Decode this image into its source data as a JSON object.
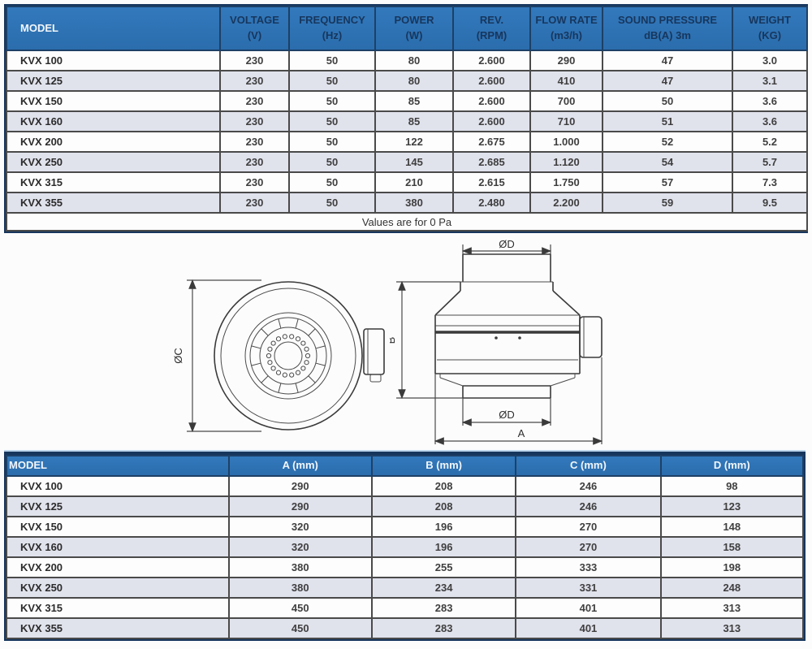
{
  "top_table": {
    "columns": [
      {
        "label": "MODEL"
      },
      {
        "label": "VOLTAGE\n(V)"
      },
      {
        "label": "FREQUENCY\n(Hz)"
      },
      {
        "label": "POWER\n(W)"
      },
      {
        "label": "REV.\n(RPM)"
      },
      {
        "label": "FLOW RATE\n(m3/h)"
      },
      {
        "label": "SOUND PRESSURE\ndB(A) 3m"
      },
      {
        "label": "WEIGHT\n(KG)"
      }
    ],
    "rows": [
      {
        "model": "KVX 100",
        "voltage": "230",
        "frequency": "50",
        "power": "80",
        "rev": "2.600",
        "flow": "290",
        "sound": "47",
        "weight": "3.0"
      },
      {
        "model": "KVX 125",
        "voltage": "230",
        "frequency": "50",
        "power": "80",
        "rev": "2.600",
        "flow": "410",
        "sound": "47",
        "weight": "3.1"
      },
      {
        "model": "KVX 150",
        "voltage": "230",
        "frequency": "50",
        "power": "85",
        "rev": "2.600",
        "flow": "700",
        "sound": "50",
        "weight": "3.6"
      },
      {
        "model": "KVX 160",
        "voltage": "230",
        "frequency": "50",
        "power": "85",
        "rev": "2.600",
        "flow": "710",
        "sound": "51",
        "weight": "3.6"
      },
      {
        "model": "KVX 200",
        "voltage": "230",
        "frequency": "50",
        "power": "122",
        "rev": "2.675",
        "flow": "1.000",
        "sound": "52",
        "weight": "5.2"
      },
      {
        "model": "KVX 250",
        "voltage": "230",
        "frequency": "50",
        "power": "145",
        "rev": "2.685",
        "flow": "1.120",
        "sound": "54",
        "weight": "5.7"
      },
      {
        "model": "KVX 315",
        "voltage": "230",
        "frequency": "50",
        "power": "210",
        "rev": "2.615",
        "flow": "1.750",
        "sound": "57",
        "weight": "7.3"
      },
      {
        "model": "KVX 355",
        "voltage": "230",
        "frequency": "50",
        "power": "380",
        "rev": "2.480",
        "flow": "2.200",
        "sound": "59",
        "weight": "9.5"
      }
    ],
    "footnote": "Values are for 0 Pa"
  },
  "diagram": {
    "front": {
      "dim_c": "ØC"
    },
    "side": {
      "dim_b": "B",
      "dim_d_top": "ØD",
      "dim_d_bottom": "ØD",
      "dim_a": "A"
    }
  },
  "bottom_table": {
    "columns": [
      {
        "label": "MODEL"
      },
      {
        "label": "A (mm)"
      },
      {
        "label": "B (mm)"
      },
      {
        "label": "C (mm)"
      },
      {
        "label": "D (mm)"
      }
    ],
    "rows": [
      {
        "model": "KVX 100",
        "a": "290",
        "b": "208",
        "c": "246",
        "d": "98"
      },
      {
        "model": "KVX 125",
        "a": "290",
        "b": "208",
        "c": "246",
        "d": "123"
      },
      {
        "model": "KVX 150",
        "a": "320",
        "b": "196",
        "c": "270",
        "d": "148"
      },
      {
        "model": "KVX 160",
        "a": "320",
        "b": "196",
        "c": "270",
        "d": "158"
      },
      {
        "model": "KVX 200",
        "a": "380",
        "b": "255",
        "c": "333",
        "d": "198"
      },
      {
        "model": "KVX 250",
        "a": "380",
        "b": "234",
        "c": "331",
        "d": "248"
      },
      {
        "model": "KVX 315",
        "a": "450",
        "b": "283",
        "c": "401",
        "d": "313"
      },
      {
        "model": "KVX 355",
        "a": "450",
        "b": "283",
        "c": "401",
        "d": "313"
      }
    ]
  },
  "colors": {
    "header_blue": "#2e74b5",
    "navy": "#17365d",
    "row_alt": "#e0e2ec",
    "grid_line": "#4a4a4a"
  }
}
